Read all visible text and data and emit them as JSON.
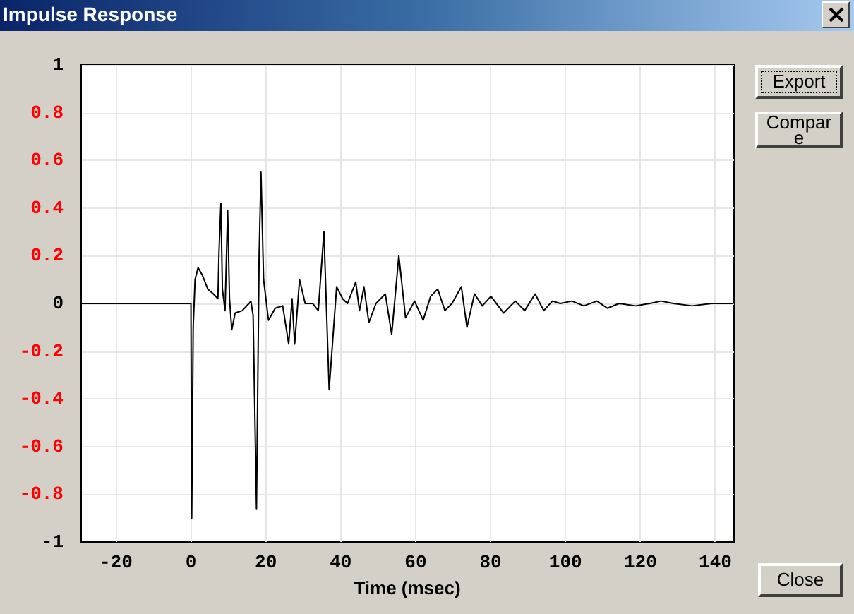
{
  "chart_data": {
    "type": "line",
    "title": "Impulse Response",
    "xlabel": "Time (msec)",
    "annotations": [
      "Export",
      "Compare",
      "Close"
    ],
    "xlim": [
      -29.5,
      145
    ],
    "xticks": [
      -20,
      0,
      20,
      40,
      60,
      80,
      100,
      120,
      140
    ],
    "ylim": [
      -1,
      1
    ],
    "yticks": [
      -1,
      -0.8,
      -0.6,
      -0.4,
      -0.2,
      0,
      0.2,
      0.4,
      0.6,
      0.8,
      1
    ],
    "grid": true,
    "marker": "none",
    "line_style": "solid",
    "series": [
      {
        "color": "#000000",
        "x": [
          -29.5,
          0,
          0.2,
          0.6,
          1.1,
          1.9,
          3,
          4.5,
          6,
          7.2,
          7.5,
          8.0,
          8.4,
          9.1,
          9.8,
          10.3,
          10.9,
          11.8,
          13.7,
          15.5,
          16,
          16.6,
          17.5,
          18.2,
          18.7,
          19.4,
          20.7,
          22.5,
          24.5,
          26.1,
          27,
          27.7,
          29,
          30.5,
          32.5,
          34,
          35.5,
          36.9,
          38.9,
          40.5,
          41.8,
          44,
          45,
          46.2,
          47.5,
          49.4,
          51.9,
          53.6,
          55.5,
          57.3,
          59.7,
          62,
          64,
          65.9,
          67.8,
          69.7,
          72.2,
          73.7,
          75.7,
          77.8,
          80.1,
          83.5,
          86.6,
          89.1,
          91.9,
          94.2,
          96.5,
          98.6,
          101.7,
          104.9,
          108.4,
          111.2,
          114.3,
          118.7,
          122.5,
          125.5,
          128.8,
          133.8,
          139,
          144.9
        ],
        "values": [
          0,
          0,
          -0.9,
          -0.1,
          0.1,
          0.15,
          0.12,
          0.06,
          0.04,
          0.02,
          0.22,
          0.42,
          0.06,
          -0.03,
          0.39,
          0.02,
          -0.11,
          -0.04,
          -0.03,
          0.0,
          0.01,
          -0.05,
          -0.86,
          0.2,
          0.55,
          0.1,
          -0.07,
          -0.02,
          -0.01,
          -0.17,
          0.02,
          -0.17,
          0.1,
          0.0,
          0.0,
          -0.03,
          0.3,
          -0.36,
          0.07,
          0.02,
          0.0,
          0.09,
          -0.03,
          0.07,
          -0.08,
          0.0,
          0.04,
          -0.13,
          0.2,
          -0.06,
          0.01,
          -0.07,
          0.03,
          0.06,
          -0.03,
          0.0,
          0.07,
          -0.1,
          0.04,
          -0.01,
          0.03,
          -0.04,
          0.01,
          -0.03,
          0.04,
          -0.03,
          0.01,
          0.0,
          0.01,
          -0.01,
          0.01,
          -0.02,
          0.0,
          -0.01,
          0.0,
          0.01,
          0.0,
          -0.01,
          0.0,
          0.0
        ]
      }
    ]
  }
}
